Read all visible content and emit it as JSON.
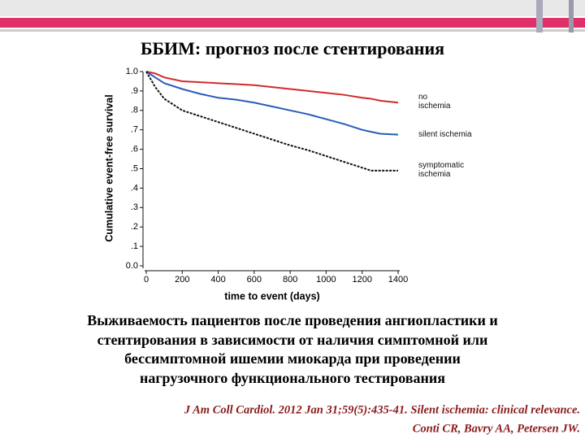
{
  "slide": {
    "title": "ББИМ: прогноз после стентирования",
    "caption": [
      "Выживаемость пациентов после проведения ангиопластики и",
      "стентирования в зависимости от наличия симптомной или",
      "бессимптомной ишемии миокарда при проведении",
      "нагрузочного функционального тестирования"
    ],
    "citation": [
      "J Am Coll Cardiol. 2012 Jan 31;59(5):435-41. Silent ischemia: clinical relevance.",
      "Conti CR, Bavry AA, Petersen JW."
    ]
  },
  "chart_data": {
    "type": "line",
    "x_label": "time to event (days)",
    "y_label": "Cumulative event-free survival",
    "x": [
      0,
      50,
      100,
      200,
      300,
      400,
      500,
      600,
      700,
      800,
      900,
      1000,
      1100,
      1200,
      1250,
      1300,
      1400
    ],
    "series": [
      {
        "name": "no ischemia",
        "color": "#d42a2a",
        "values": [
          1.0,
          0.99,
          0.97,
          0.95,
          0.945,
          0.94,
          0.935,
          0.93,
          0.92,
          0.91,
          0.9,
          0.89,
          0.88,
          0.865,
          0.86,
          0.85,
          0.84
        ]
      },
      {
        "name": "silent ischemia",
        "color": "#2a5cb8",
        "values": [
          1.0,
          0.97,
          0.94,
          0.91,
          0.885,
          0.865,
          0.855,
          0.84,
          0.82,
          0.8,
          0.78,
          0.755,
          0.73,
          0.7,
          0.69,
          0.68,
          0.675
        ]
      },
      {
        "name": "symptomatic ischemia",
        "color": "#111111",
        "values": [
          1.0,
          0.92,
          0.86,
          0.8,
          0.77,
          0.74,
          0.71,
          0.68,
          0.65,
          0.62,
          0.595,
          0.565,
          0.535,
          0.505,
          0.49,
          0.49,
          0.49
        ]
      }
    ],
    "xlim": [
      0,
      1400
    ],
    "xticks": [
      0,
      200,
      400,
      600,
      800,
      1000,
      1200,
      1400
    ],
    "ylim": [
      0,
      1.0
    ],
    "yticks": [
      {
        "value": 0,
        "label": "0.0"
      },
      {
        "value": 0.1,
        "label": ".1"
      },
      {
        "value": 0.2,
        "label": ".2"
      },
      {
        "value": 0.3,
        "label": ".3"
      },
      {
        "value": 0.4,
        "label": ".4"
      },
      {
        "value": 0.5,
        "label": ".5"
      },
      {
        "value": 0.6,
        "label": ".6"
      },
      {
        "value": 0.7,
        "label": ".7"
      },
      {
        "value": 0.8,
        "label": ".8"
      },
      {
        "value": 0.9,
        "label": ".9"
      },
      {
        "value": 1.0,
        "label": "1.0"
      }
    ],
    "legend": "right",
    "grid": false
  }
}
